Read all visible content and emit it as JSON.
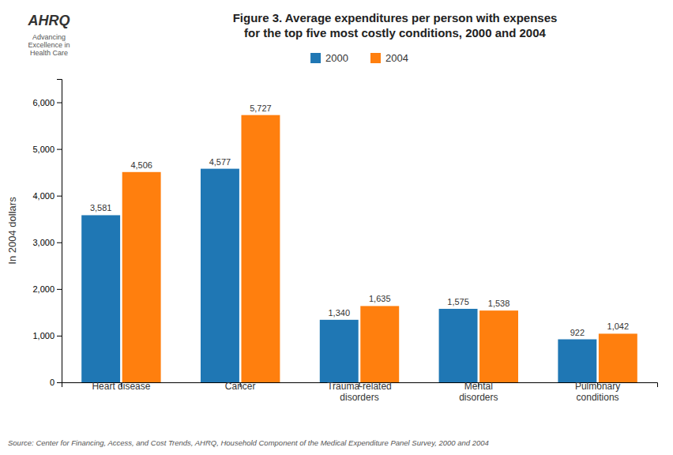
{
  "chart_data": {
    "type": "bar",
    "title": "Figure 3. Average expenditures per person with expenses\nfor the top five most costly conditions, 2000 and 2004",
    "y_label": "In 2004 dollars",
    "annotations": [
      "AHRQ",
      "Advancing\nExcellence in\nHealth Care",
      "Source: Center for Financing, Access, and Cost Trends, AHRQ, Household Component of the Medical Expenditure Panel Survey, 2000 and 2004"
    ],
    "categories": [
      "Heart disease",
      "Cancer",
      "Trauma-related\ndisorders",
      "Mental\ndisorders",
      "Pulmonary\nconditions"
    ],
    "series": [
      {
        "name": "2000",
        "values": [
          3581,
          4577,
          1340,
          1575,
          922
        ],
        "value_labels": [
          "3,581",
          "4,577",
          "1,340",
          "1,575",
          "922"
        ]
      },
      {
        "name": "2004",
        "values": [
          4506,
          5727,
          1635,
          1538,
          1042
        ],
        "value_labels": [
          "4,506",
          "5,727",
          "1,635",
          "1,538",
          "1,042"
        ]
      }
    ],
    "ylim": [
      0,
      6500
    ],
    "yticks": [
      0,
      {
        "value": 1000,
        "label": "1,000"
      },
      {
        "value": 2000,
        "label": "2,000"
      },
      {
        "value": 3000,
        "label": "3,000"
      },
      {
        "value": 4000,
        "label": "4,000"
      },
      {
        "value": 5000,
        "label": "5,000"
      },
      {
        "value": 6000,
        "label": "6,000"
      }
    ],
    "grid": false,
    "legend": "top",
    "data_labels": true
  }
}
